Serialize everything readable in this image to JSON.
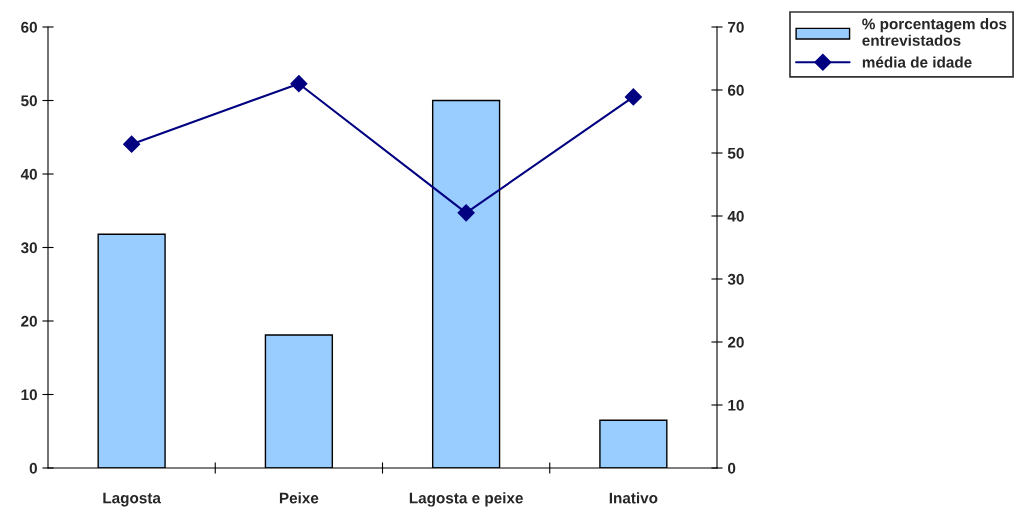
{
  "chart_data": {
    "type": "bar",
    "categories": [
      "Lagosta",
      "Peixe",
      "Lagosta e peixe",
      "Inativo"
    ],
    "series": [
      {
        "name": "% porcentagem dos entrevistados",
        "color": "#99ccff",
        "values": [
          31.8,
          18.1,
          50,
          6.5
        ]
      },
      {
        "name": "média de idade",
        "type": "line",
        "axis": "y2",
        "color": "#000080",
        "marker": "diamond",
        "values": [
          51.4,
          61,
          40.5,
          58.9
        ]
      }
    ],
    "ylim": [
      0,
      60
    ],
    "yticks": [
      0,
      10,
      20,
      30,
      40,
      50,
      60
    ],
    "y2lim": [
      0,
      70
    ],
    "y2ticks": [
      0,
      10,
      20,
      30,
      40,
      50,
      60,
      70
    ],
    "legend": "top right",
    "grid": false
  }
}
